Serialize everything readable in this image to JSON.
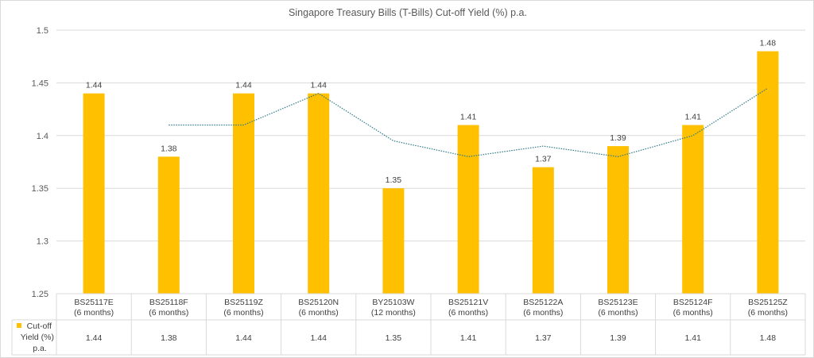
{
  "chart_data": {
    "type": "bar",
    "title": "Singapore Treasury Bills (T-Bills) Cut-off Yield (%) p.a.",
    "categories": [
      [
        "BS25117E",
        "(6 months)"
      ],
      [
        "BS25118F",
        "(6 months)"
      ],
      [
        "BS25119Z",
        "(6 months)"
      ],
      [
        "BS25120N",
        "(6 months)"
      ],
      [
        "BY25103W",
        "(12 months)"
      ],
      [
        "BS25121V",
        "(6 months)"
      ],
      [
        "BS25122A",
        "(6 months)"
      ],
      [
        "BS25123E",
        "(6 months)"
      ],
      [
        "BS25124F",
        "(6 months)"
      ],
      [
        "BS25125Z",
        "(6 months)"
      ]
    ],
    "series": [
      {
        "name": "Cut-off Yield (%) p.a.",
        "legend_lines": [
          "Cut-off",
          "Yield (%)",
          "p.a."
        ],
        "values": [
          1.44,
          1.38,
          1.44,
          1.44,
          1.35,
          1.41,
          1.37,
          1.39,
          1.41,
          1.48
        ],
        "color": "#ffc000"
      }
    ],
    "trendline": {
      "type": "2-period moving average",
      "style": "dotted",
      "color": "#2f7a8a",
      "values": [
        null,
        1.41,
        1.41,
        1.44,
        1.395,
        1.38,
        1.39,
        1.38,
        1.4,
        1.445
      ]
    },
    "yticks": [
      "1.25",
      "1.3",
      "1.35",
      "1.4",
      "1.45",
      "1.5"
    ],
    "ylim": [
      1.25,
      1.5
    ],
    "grid": true,
    "data_table": true,
    "legend": "data-table"
  }
}
